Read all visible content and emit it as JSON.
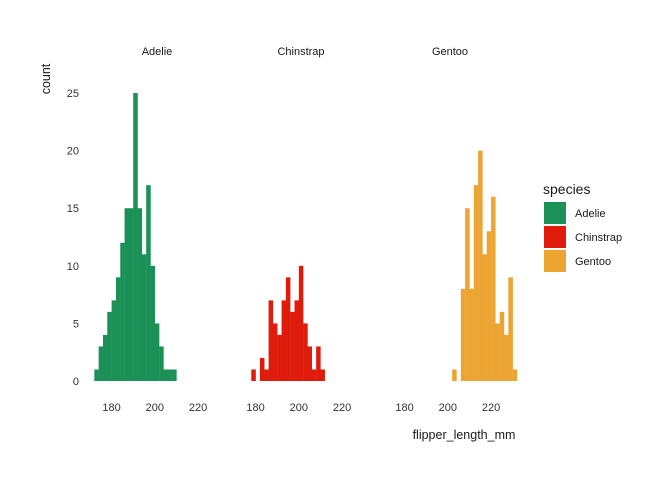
{
  "chart_data": {
    "type": "bar",
    "subtype": "faceted-histogram",
    "title": "",
    "xlabel": "flipper_length_mm",
    "ylabel": "count",
    "xlim": [
      170,
      232
    ],
    "ylim": [
      0,
      27
    ],
    "x_ticks": [
      "180",
      "200",
      "220"
    ],
    "y_ticks": [
      "0",
      "5",
      "10",
      "15",
      "20",
      "25"
    ],
    "bin_width": 2,
    "grid": false,
    "legend": {
      "title": "species",
      "position": "right",
      "entries": [
        {
          "label": "Adelie",
          "color": "#1b9158"
        },
        {
          "label": "Chinstrap",
          "color": "#df1c0c"
        },
        {
          "label": "Gentoo",
          "color": "#eca533"
        }
      ]
    },
    "facets": [
      {
        "name": "Adelie",
        "color": "#1b9158",
        "bins": [
          {
            "x": 173,
            "count": 1
          },
          {
            "x": 175,
            "count": 3
          },
          {
            "x": 177,
            "count": 4
          },
          {
            "x": 179,
            "count": 6
          },
          {
            "x": 181,
            "count": 7
          },
          {
            "x": 183,
            "count": 9
          },
          {
            "x": 185,
            "count": 12
          },
          {
            "x": 187,
            "count": 15
          },
          {
            "x": 189,
            "count": 15
          },
          {
            "x": 191,
            "count": 25
          },
          {
            "x": 193,
            "count": 15
          },
          {
            "x": 195,
            "count": 11
          },
          {
            "x": 197,
            "count": 17
          },
          {
            "x": 199,
            "count": 10
          },
          {
            "x": 201,
            "count": 5
          },
          {
            "x": 203,
            "count": 3
          },
          {
            "x": 205,
            "count": 1
          },
          {
            "x": 207,
            "count": 1
          },
          {
            "x": 209,
            "count": 1
          }
        ]
      },
      {
        "name": "Chinstrap",
        "color": "#df1c0c",
        "bins": [
          {
            "x": 179,
            "count": 1
          },
          {
            "x": 181,
            "count": 0
          },
          {
            "x": 183,
            "count": 2
          },
          {
            "x": 185,
            "count": 1
          },
          {
            "x": 187,
            "count": 7
          },
          {
            "x": 189,
            "count": 5
          },
          {
            "x": 191,
            "count": 4
          },
          {
            "x": 193,
            "count": 7
          },
          {
            "x": 195,
            "count": 9
          },
          {
            "x": 197,
            "count": 6
          },
          {
            "x": 199,
            "count": 7
          },
          {
            "x": 201,
            "count": 10
          },
          {
            "x": 203,
            "count": 5
          },
          {
            "x": 205,
            "count": 3
          },
          {
            "x": 207,
            "count": 1
          },
          {
            "x": 209,
            "count": 3
          },
          {
            "x": 211,
            "count": 1
          }
        ]
      },
      {
        "name": "Gentoo",
        "color": "#eca533",
        "bins": [
          {
            "x": 203,
            "count": 1
          },
          {
            "x": 205,
            "count": 0
          },
          {
            "x": 207,
            "count": 8
          },
          {
            "x": 209,
            "count": 15
          },
          {
            "x": 211,
            "count": 8
          },
          {
            "x": 213,
            "count": 17
          },
          {
            "x": 215,
            "count": 20
          },
          {
            "x": 217,
            "count": 11
          },
          {
            "x": 219,
            "count": 13
          },
          {
            "x": 221,
            "count": 16
          },
          {
            "x": 223,
            "count": 5
          },
          {
            "x": 225,
            "count": 6
          },
          {
            "x": 227,
            "count": 4
          },
          {
            "x": 229,
            "count": 9
          },
          {
            "x": 231,
            "count": 1
          }
        ]
      }
    ]
  }
}
